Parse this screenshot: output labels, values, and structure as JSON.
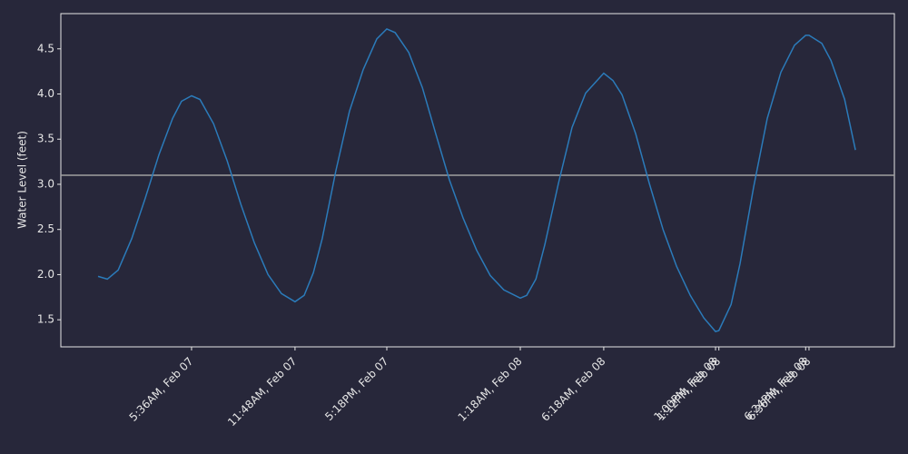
{
  "chart_data": {
    "type": "line",
    "y_label": "Water Level (feet)",
    "x": [
      "Feb 07 00:00",
      "Feb 07 00:33",
      "Feb 07 01:12",
      "Feb 07 02:01",
      "Feb 07 02:50",
      "Feb 07 03:39",
      "Feb 07 04:28",
      "Feb 07 05:00",
      "Feb 07 05:36",
      "Feb 07 06:06",
      "Feb 07 06:55",
      "Feb 07 07:44",
      "Feb 07 08:33",
      "Feb 07 09:22",
      "Feb 07 10:11",
      "Feb 07 10:59",
      "Feb 07 11:48",
      "Feb 07 12:21",
      "Feb 07 12:54",
      "Feb 07 13:26",
      "Feb 07 14:15",
      "Feb 07 15:04",
      "Feb 07 15:53",
      "Feb 07 16:42",
      "Feb 07 17:18",
      "Feb 07 17:48",
      "Feb 07 18:37",
      "Feb 07 19:26",
      "Feb 07 20:14",
      "Feb 07 21:03",
      "Feb 07 21:52",
      "Feb 07 22:41",
      "Feb 07 23:30",
      "Feb 08 00:19",
      "Feb 08 01:18",
      "Feb 08 01:41",
      "Feb 08 02:14",
      "Feb 08 02:46",
      "Feb 08 03:35",
      "Feb 08 04:24",
      "Feb 08 05:13",
      "Feb 08 06:18",
      "Feb 08 06:51",
      "Feb 08 07:24",
      "Feb 08 08:13",
      "Feb 08 09:02",
      "Feb 08 09:51",
      "Feb 08 10:40",
      "Feb 08 11:29",
      "Feb 08 12:18",
      "Feb 08 13:00",
      "Feb 08 13:12",
      "Feb 08 13:56",
      "Feb 08 14:28",
      "Feb 08 15:17",
      "Feb 08 16:06",
      "Feb 08 16:55",
      "Feb 08 17:44",
      "Feb 08 18:24",
      "Feb 08 18:36",
      "Feb 08 19:22",
      "Feb 08 19:55",
      "Feb 08 20:44",
      "Feb 08 21:23"
    ],
    "series": [
      {
        "color": "#2b7bba",
        "values": [
          1.98,
          1.95,
          2.05,
          2.4,
          2.85,
          3.33,
          3.73,
          3.92,
          3.98,
          3.94,
          3.67,
          3.26,
          2.78,
          2.35,
          2.0,
          1.79,
          1.7,
          1.77,
          2.02,
          2.4,
          3.15,
          3.81,
          4.27,
          4.61,
          4.72,
          4.68,
          4.46,
          4.07,
          3.56,
          3.05,
          2.63,
          2.27,
          1.99,
          1.83,
          1.74,
          1.77,
          1.95,
          2.33,
          3.01,
          3.63,
          4.01,
          4.23,
          4.15,
          3.99,
          3.56,
          3.01,
          2.5,
          2.09,
          1.77,
          1.52,
          1.37,
          1.38,
          1.67,
          2.12,
          2.97,
          3.73,
          4.24,
          4.54,
          4.65,
          4.65,
          4.56,
          4.37,
          3.94,
          3.38
        ]
      }
    ],
    "hline": {
      "value": 3.1,
      "color": "#a0a0a0"
    },
    "xlim": [
      "Feb 06 21:46",
      "Feb 08 23:43"
    ],
    "xticks": [
      {
        "value": "Feb 07 05:36",
        "label": "5:36AM, Feb 07"
      },
      {
        "value": "Feb 07 11:48",
        "label": "11:48AM, Feb 07"
      },
      {
        "value": "Feb 07 17:18",
        "label": "5:18PM, Feb 07"
      },
      {
        "value": "Feb 08 01:18",
        "label": "1:18AM, Feb 08"
      },
      {
        "value": "Feb 08 06:18",
        "label": "6:18AM, Feb 08"
      },
      {
        "value": "Feb 08 13:00",
        "label": "1:00PM, Feb 08"
      },
      {
        "value": "Feb 08 13:12",
        "label": "1:12PM, Feb 08"
      },
      {
        "value": "Feb 08 18:24",
        "label": "6:24PM, Feb 08"
      },
      {
        "value": "Feb 08 18:36",
        "label": "6:36PM, Feb 08"
      }
    ],
    "ylim": [
      1.2,
      4.89
    ],
    "yticks": [
      1.5,
      {
        "value": 2,
        "label": "2.0"
      },
      2.5,
      {
        "value": 3,
        "label": "3.0"
      },
      3.5,
      {
        "value": 4,
        "label": "4.0"
      },
      4.5
    ]
  }
}
